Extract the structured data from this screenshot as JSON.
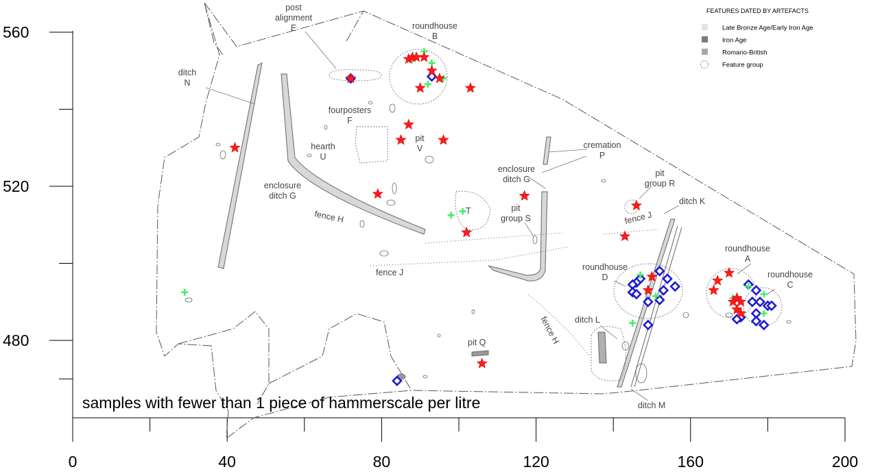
{
  "caption": "samples with fewer than 1 piece of hammerscale per litre",
  "legend": {
    "title": "FEATURES DATED BY ARTEFACTS",
    "items": [
      {
        "label": "Late Bronze Age/Early Iron Age",
        "color": "#e3e3e3",
        "shape": "square"
      },
      {
        "label": "Iron Age",
        "color": "#7a7a7a",
        "shape": "square"
      },
      {
        "label": "Romano-British",
        "color": "#a8a8a8",
        "shape": "square"
      },
      {
        "label": "Feature group",
        "color": "#777777",
        "shape": "dashed-circle"
      }
    ]
  },
  "axes": {
    "x": {
      "min": 0,
      "max": 200,
      "ticks": [
        0,
        40,
        80,
        120,
        160,
        200
      ]
    },
    "y": {
      "min": 460,
      "max": 567,
      "ticks": [
        480,
        520,
        560
      ]
    }
  },
  "features": {
    "post_alignment": {
      "l1": "post",
      "l2": "alignment",
      "l3": "E"
    },
    "roundhouse_b": {
      "l1": "roundhouse",
      "l2": "B"
    },
    "ditch_n": {
      "l1": "ditch",
      "l2": "N"
    },
    "fourposters": {
      "l1": "fourposters",
      "l2": "F"
    },
    "pit_v": {
      "l1": "pit",
      "l2": "V"
    },
    "hearth_u": {
      "l1": "hearth",
      "l2": "U"
    },
    "enclosure_ditch_g_left": {
      "l1": "enclosure",
      "l2": "ditch G"
    },
    "cremation_p": {
      "l1": "cremation",
      "l2": "P"
    },
    "enclosure_ditch_g_right": {
      "l1": "enclosure",
      "l2": "ditch G"
    },
    "pit_group_r": {
      "l1": "pit",
      "l2": "group R"
    },
    "ditch_k": {
      "l1": "ditch K"
    },
    "fence_h_left": {
      "l1": "fence H"
    },
    "fence_h_right": {
      "l1": "fence H"
    },
    "pit_group_s": {
      "l1": "pit",
      "l2": "group S"
    },
    "fence_j_upper": {
      "l1": "fence J"
    },
    "fence_j_lower": {
      "l1": "fence J"
    },
    "t_label": {
      "l1": "T"
    },
    "roundhouse_a": {
      "l1": "roundhouse",
      "l2": "A"
    },
    "roundhouse_c": {
      "l1": "roundhouse",
      "l2": "C"
    },
    "roundhouse_d": {
      "l1": "roundhouse",
      "l2": "D"
    },
    "ditch_l": {
      "l1": "ditch L"
    },
    "ditch_m": {
      "l1": "ditch M"
    },
    "pit_q": {
      "l1": "pit Q"
    }
  },
  "markers": {
    "red_star": {
      "color": "#ff1a1a",
      "shape": "star"
    },
    "blue_diamond": {
      "color": "#1a1ad6",
      "shape": "diamond"
    },
    "green_cross": {
      "color": "#44ee66",
      "shape": "cross"
    },
    "stars": [
      [
        42,
        530
      ],
      [
        72,
        548
      ],
      [
        87,
        553
      ],
      [
        88,
        553.5
      ],
      [
        89,
        553.5
      ],
      [
        91,
        553.5
      ],
      [
        93,
        550
      ],
      [
        95,
        548
      ],
      [
        90,
        545.5
      ],
      [
        103,
        545.5
      ],
      [
        87,
        536
      ],
      [
        85,
        532
      ],
      [
        96,
        532
      ],
      [
        79,
        518
      ],
      [
        117,
        517.5
      ],
      [
        102,
        508
      ],
      [
        146,
        515
      ],
      [
        143,
        507
      ],
      [
        150,
        496.5
      ],
      [
        149,
        493
      ],
      [
        170,
        497.5
      ],
      [
        167,
        495.5
      ],
      [
        166,
        493
      ],
      [
        171,
        490
      ],
      [
        172,
        491
      ],
      [
        173,
        490
      ],
      [
        172,
        488
      ],
      [
        173,
        487
      ],
      [
        106,
        474
      ]
    ],
    "diamonds": [
      [
        72,
        548
      ],
      [
        93,
        548.5
      ],
      [
        147,
        496
      ],
      [
        146,
        495
      ],
      [
        145,
        494.5
      ],
      [
        145,
        492.5
      ],
      [
        146,
        492
      ],
      [
        149,
        490
      ],
      [
        152,
        498
      ],
      [
        154,
        496
      ],
      [
        156,
        494
      ],
      [
        153,
        493
      ],
      [
        152,
        490.5
      ],
      [
        149,
        484
      ],
      [
        175,
        494.5
      ],
      [
        177,
        493
      ],
      [
        176,
        490
      ],
      [
        178,
        490
      ],
      [
        180,
        489
      ],
      [
        181,
        489
      ],
      [
        177,
        487
      ],
      [
        173,
        486
      ],
      [
        172,
        485.5
      ],
      [
        177,
        485
      ],
      [
        179,
        484
      ],
      [
        84,
        469.5
      ]
    ],
    "crosses": [
      [
        88,
        553
      ],
      [
        91,
        555
      ],
      [
        93,
        552
      ],
      [
        96,
        548
      ],
      [
        92,
        546.5
      ],
      [
        98,
        512.5
      ],
      [
        101,
        513.5
      ],
      [
        29,
        492.5
      ],
      [
        147,
        497
      ],
      [
        151,
        491.5
      ],
      [
        145,
        484.5
      ],
      [
        175,
        494
      ],
      [
        179,
        492
      ],
      [
        171,
        491
      ],
      [
        179,
        487
      ]
    ]
  }
}
